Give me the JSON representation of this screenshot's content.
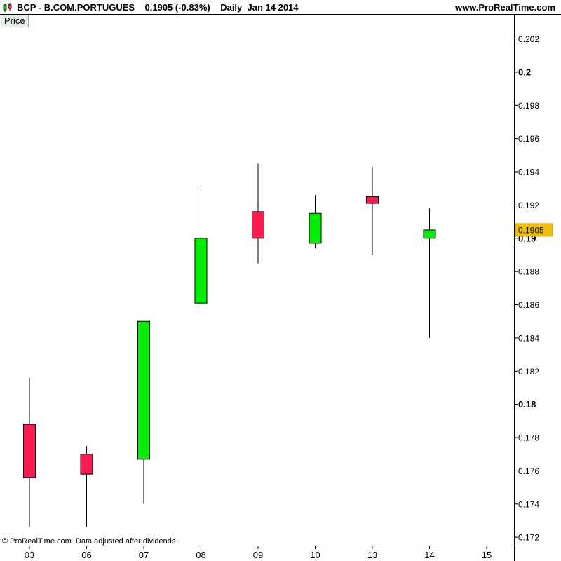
{
  "header": {
    "symbol": "BCP - B.COM.PORTUGUES",
    "last": "0.1905 (-0.83%)",
    "period": "Daily",
    "date": "Jan 14 2014",
    "site": "www.ProRealTime.com"
  },
  "panel_label": "Price",
  "footer_note": "© ProRealTime.com  Data adjusted after dividends",
  "colors": {
    "up": "#00ee00",
    "down": "#ff1a50",
    "last_price_bg": "#f0c000",
    "axis": "#000000"
  },
  "icons": {
    "chart_type": "candlestick-icon"
  },
  "chart_data": {
    "type": "candlestick",
    "title": "BCP - B.COM.PORTUGUES",
    "x_labels": [
      "03",
      "06",
      "07",
      "08",
      "09",
      "10",
      "13",
      "14",
      "15"
    ],
    "y_ticks": [
      0.172,
      0.174,
      0.176,
      0.178,
      0.18,
      0.182,
      0.184,
      0.186,
      0.188,
      0.19,
      0.192,
      0.194,
      0.196,
      0.198,
      0.2,
      0.202
    ],
    "y_bold_ticks": [
      0.18,
      0.19,
      0.2
    ],
    "ylim": [
      0.1715,
      0.2035
    ],
    "last_price": 0.1905,
    "last_price_label": "0.1905",
    "candles": [
      {
        "date": "03",
        "open": 0.1788,
        "high": 0.1816,
        "low": 0.1726,
        "close": 0.1756
      },
      {
        "date": "06",
        "open": 0.177,
        "high": 0.1775,
        "low": 0.1726,
        "close": 0.1758
      },
      {
        "date": "07",
        "open": 0.1767,
        "high": 0.185,
        "low": 0.174,
        "close": 0.185
      },
      {
        "date": "08",
        "open": 0.1861,
        "high": 0.193,
        "low": 0.1855,
        "close": 0.19
      },
      {
        "date": "09",
        "open": 0.1916,
        "high": 0.1945,
        "low": 0.1885,
        "close": 0.19
      },
      {
        "date": "10",
        "open": 0.1897,
        "high": 0.1926,
        "low": 0.1894,
        "close": 0.1915
      },
      {
        "date": "13",
        "open": 0.1925,
        "high": 0.1943,
        "low": 0.189,
        "close": 0.1921
      },
      {
        "date": "14",
        "open": 0.19,
        "high": 0.1918,
        "low": 0.184,
        "close": 0.1905
      }
    ]
  }
}
